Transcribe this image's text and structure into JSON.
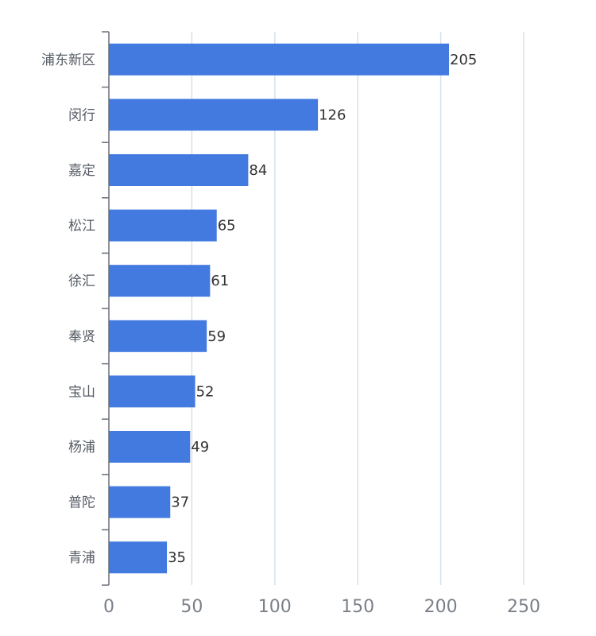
{
  "chart_data": {
    "type": "bar",
    "orientation": "horizontal",
    "categories": [
      "浦东新区",
      "闵行",
      "嘉定",
      "松江",
      "徐汇",
      "奉贤",
      "宝山",
      "杨浦",
      "普陀",
      "青浦"
    ],
    "values": [
      205,
      126,
      84,
      65,
      61,
      59,
      52,
      49,
      37,
      35
    ],
    "x_ticks": [
      "0",
      "50",
      "100",
      "150",
      "200",
      "250"
    ],
    "xlim": [
      0,
      250
    ],
    "grid": true,
    "bar_color": "#427ae0",
    "data_labels": true,
    "title": "",
    "xlabel": "",
    "ylabel": ""
  }
}
